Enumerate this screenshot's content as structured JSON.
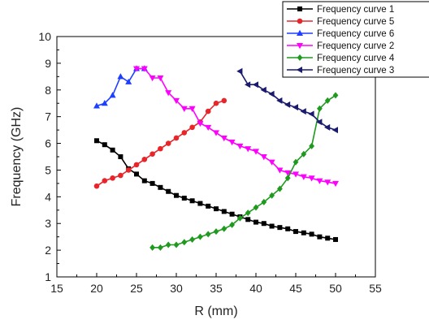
{
  "chart_data": {
    "type": "line",
    "title": "",
    "xlabel": "R (mm)",
    "ylabel": "Frequency (GHz)",
    "xlim": [
      15,
      55
    ],
    "ylim": [
      1,
      10
    ],
    "xticks": [
      15,
      20,
      25,
      30,
      35,
      40,
      45,
      50,
      55
    ],
    "yticks": [
      1,
      2,
      3,
      4,
      5,
      6,
      7,
      8,
      9,
      10
    ],
    "grid": false,
    "legend_position": "top-right",
    "series": [
      {
        "name": "Frequency curve 1",
        "color": "#000000",
        "marker": "square",
        "x": [
          20,
          21,
          22,
          23,
          24,
          25,
          26,
          27,
          28,
          29,
          30,
          31,
          32,
          33,
          34,
          35,
          36,
          37,
          38,
          39,
          40,
          41,
          42,
          43,
          44,
          45,
          46,
          47,
          48,
          49,
          50
        ],
        "y": [
          6.1,
          5.95,
          5.75,
          5.5,
          5.05,
          4.85,
          4.6,
          4.5,
          4.35,
          4.2,
          4.05,
          3.95,
          3.85,
          3.75,
          3.65,
          3.55,
          3.45,
          3.35,
          3.25,
          3.15,
          3.05,
          3.0,
          2.9,
          2.85,
          2.8,
          2.7,
          2.65,
          2.6,
          2.5,
          2.45,
          2.4
        ]
      },
      {
        "name": "Frequency curve 5",
        "color": "#e8262a",
        "marker": "circle",
        "x": [
          20,
          21,
          22,
          23,
          24,
          25,
          26,
          27,
          28,
          29,
          30,
          31,
          32,
          33,
          34,
          35,
          36
        ],
        "y": [
          4.4,
          4.6,
          4.7,
          4.8,
          5.0,
          5.2,
          5.4,
          5.6,
          5.8,
          6.0,
          6.2,
          6.4,
          6.6,
          6.8,
          7.2,
          7.5,
          7.6
        ]
      },
      {
        "name": "Frequency curve 6",
        "color": "#1f3fff",
        "marker": "triangle-up",
        "x": [
          20,
          21,
          22,
          23,
          24,
          25,
          26
        ],
        "y": [
          7.4,
          7.5,
          7.8,
          8.5,
          8.3,
          8.8,
          8.8
        ]
      },
      {
        "name": "Frequency curve 2",
        "color": "#ff00ff",
        "marker": "triangle-down",
        "x": [
          25,
          26,
          27,
          28,
          29,
          30,
          31,
          32,
          33,
          34,
          35,
          36,
          37,
          38,
          39,
          40,
          41,
          42,
          43,
          44,
          45,
          46,
          47,
          48,
          49,
          50
        ],
        "y": [
          8.8,
          8.8,
          8.45,
          8.45,
          7.9,
          7.6,
          7.3,
          7.3,
          6.75,
          6.6,
          6.4,
          6.2,
          6.05,
          5.9,
          5.8,
          5.7,
          5.5,
          5.3,
          5.0,
          4.9,
          4.85,
          4.75,
          4.7,
          4.6,
          4.55,
          4.5
        ]
      },
      {
        "name": "Frequency curve 4",
        "color": "#1f9a1f",
        "marker": "diamond",
        "x": [
          27,
          28,
          29,
          30,
          31,
          32,
          33,
          34,
          35,
          36,
          37,
          38,
          39,
          40,
          41,
          42,
          43,
          44,
          45,
          46,
          47,
          48,
          49,
          50
        ],
        "y": [
          2.1,
          2.1,
          2.2,
          2.2,
          2.3,
          2.4,
          2.5,
          2.6,
          2.7,
          2.8,
          2.95,
          3.2,
          3.4,
          3.6,
          3.8,
          4.05,
          4.3,
          4.7,
          5.3,
          5.6,
          5.9,
          7.3,
          7.6,
          7.8
        ]
      },
      {
        "name": "Frequency curve 3",
        "color": "#1a1a6e",
        "marker": "triangle-left",
        "x": [
          38,
          39,
          40,
          41,
          42,
          43,
          44,
          45,
          46,
          47,
          48,
          49,
          50
        ],
        "y": [
          8.7,
          8.2,
          8.2,
          8.0,
          7.85,
          7.6,
          7.45,
          7.35,
          7.2,
          7.1,
          6.8,
          6.6,
          6.5
        ]
      }
    ]
  }
}
